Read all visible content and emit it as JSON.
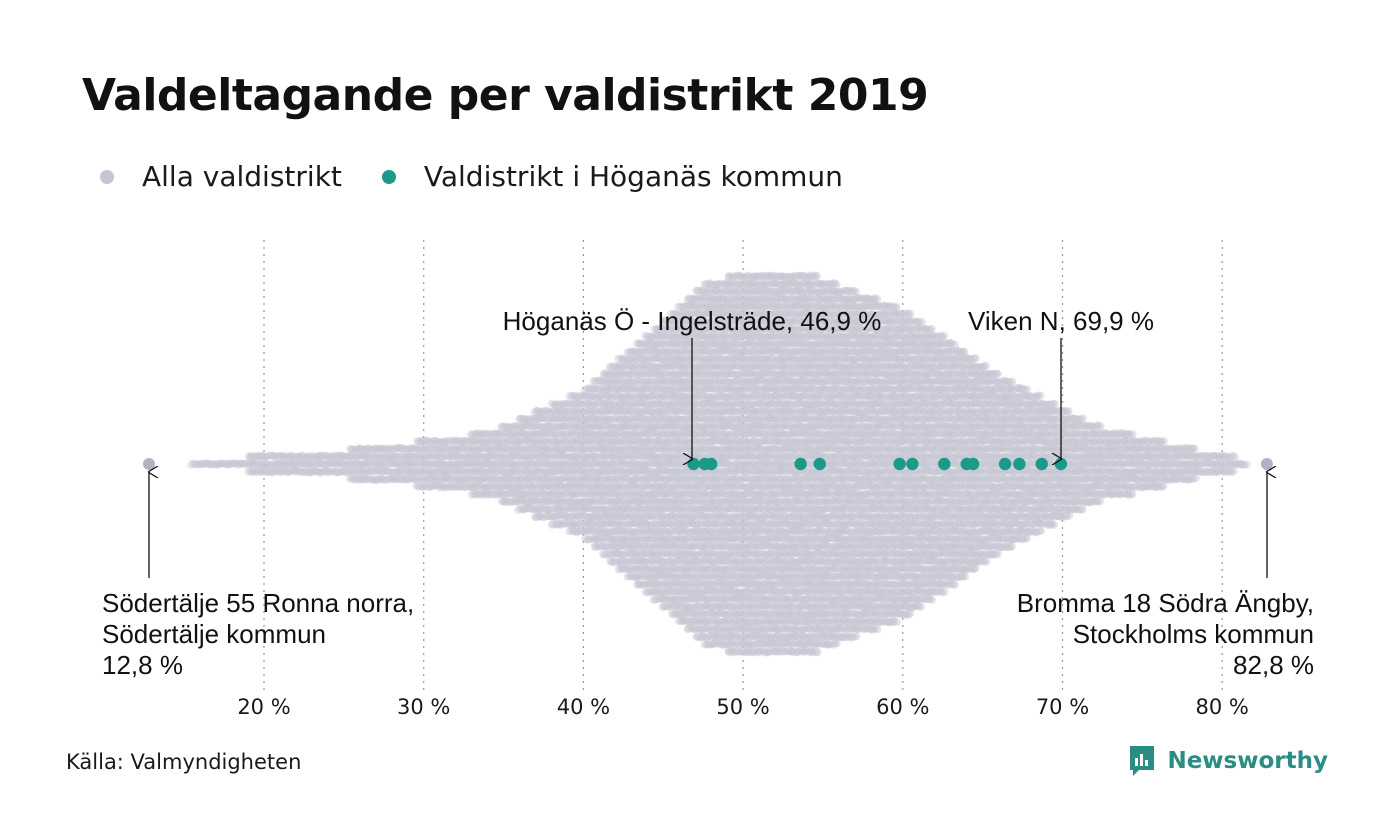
{
  "title": "Valdeltagande per valdistrikt 2019",
  "legend": {
    "all": {
      "label": "Alla valdistrikt",
      "color": "#c6c5d2"
    },
    "highlight": {
      "label": "Valdistrikt i Höganäs kommun",
      "color": "#1b9a8a"
    }
  },
  "chart_data": {
    "type": "scatter",
    "subtype": "beeswarm",
    "xlim": [
      12,
      84
    ],
    "x_ticks": [
      {
        "value": 20,
        "label": "20 %"
      },
      {
        "value": 30,
        "label": "30 %"
      },
      {
        "value": 40,
        "label": "40 %"
      },
      {
        "value": 50,
        "label": "50 %"
      },
      {
        "value": 60,
        "label": "60 %"
      },
      {
        "value": 70,
        "label": "70 %"
      },
      {
        "value": 80,
        "label": "80 %"
      }
    ],
    "grid": "vertical-dotted",
    "series": [
      {
        "name": "Alla valdistrikt",
        "color": "#c6c5d2",
        "min": 12.8,
        "max": 82.8
      },
      {
        "name": "Valdistrikt i Höganäs kommun",
        "color": "#1b9a8a",
        "values": [
          46.9,
          47.6,
          48.0,
          53.6,
          54.8,
          59.8,
          60.6,
          62.6,
          64.0,
          64.4,
          66.4,
          67.3,
          68.7,
          69.9
        ]
      }
    ],
    "annotations": [
      {
        "lines": [
          "Höganäs Ö - Ingelsträde, 46,9 %"
        ],
        "x": 46.9,
        "placement": "above"
      },
      {
        "lines": [
          "Viken N, 69,9 %"
        ],
        "x": 69.9,
        "placement": "above"
      },
      {
        "lines": [
          "Södertälje 55 Ronna norra,",
          "Södertälje kommun",
          "12,8 %"
        ],
        "x": 12.8,
        "placement": "below-left"
      },
      {
        "lines": [
          "Bromma 18 Södra Ängby,",
          "Stockholms kommun",
          "82,8 %"
        ],
        "x": 82.8,
        "placement": "below-right"
      }
    ]
  },
  "source": "Källa: Valmyndigheten",
  "brand": "Newsworthy"
}
